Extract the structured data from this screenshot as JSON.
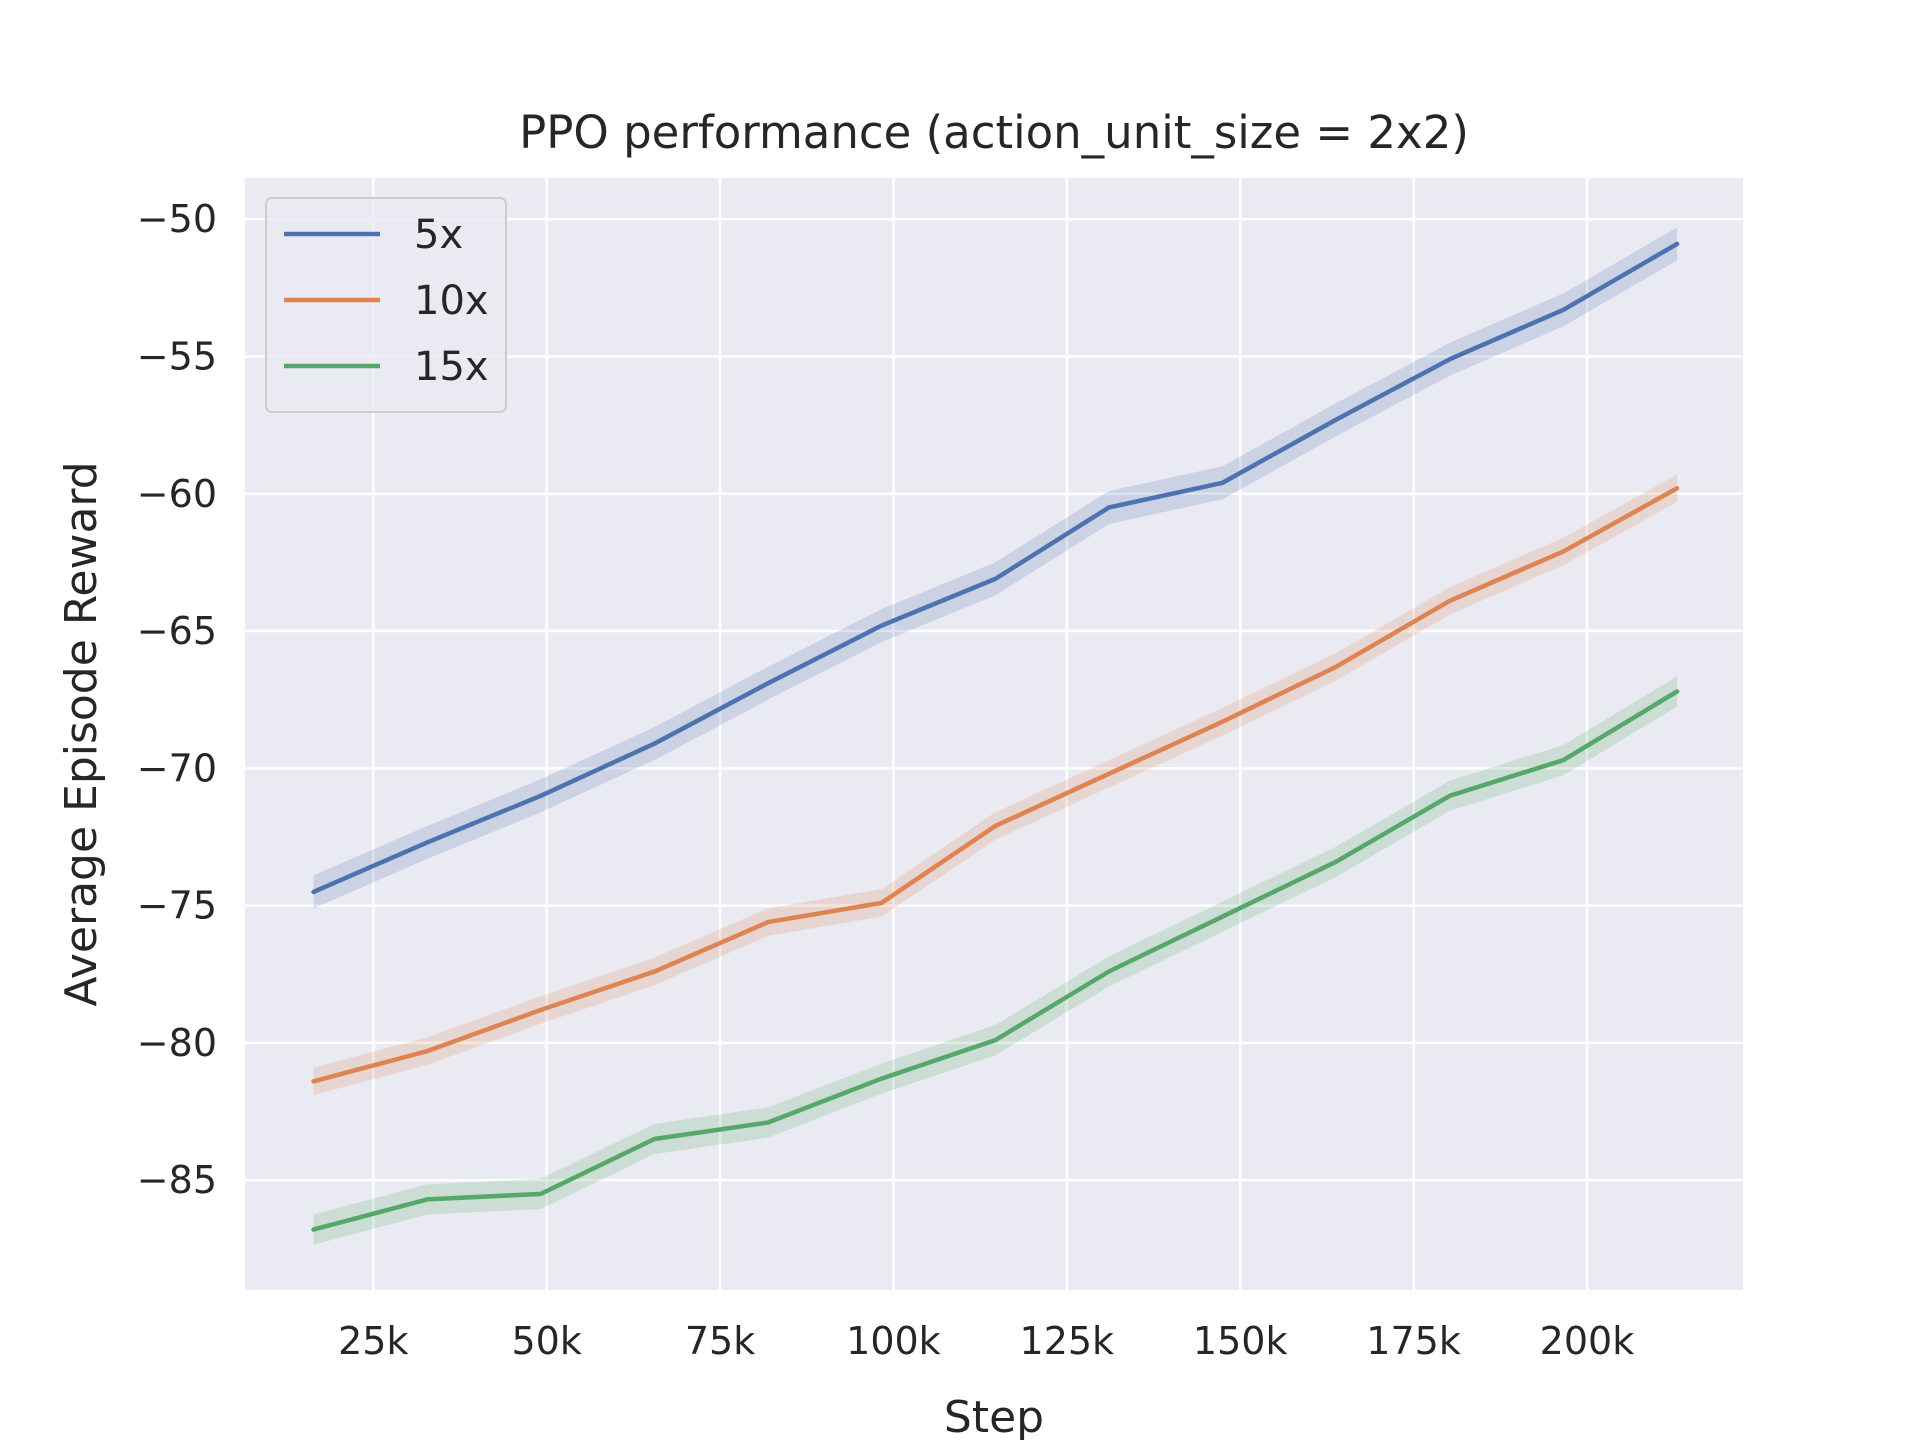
{
  "chart_data": {
    "type": "line",
    "title": "PPO performance (action_unit_size = 2x2)",
    "xlabel": "Step",
    "ylabel": "Average Episode Reward",
    "xlim": [
      6500,
      222500
    ],
    "ylim": [
      -89,
      -48.5
    ],
    "xticks": [
      25000,
      50000,
      75000,
      100000,
      125000,
      150000,
      175000,
      200000
    ],
    "xtick_labels": [
      "25k",
      "50k",
      "75k",
      "100k",
      "125k",
      "150k",
      "175k",
      "200k"
    ],
    "yticks": [
      -85,
      -80,
      -75,
      -70,
      -65,
      -60,
      -55,
      -50
    ],
    "ytick_labels": [
      "−85",
      "−80",
      "−75",
      "−70",
      "−65",
      "−60",
      "−55",
      "−50"
    ],
    "grid": true,
    "legend_position": "top-left",
    "x": [
      16384,
      32768,
      49152,
      65536,
      81920,
      98304,
      114688,
      131072,
      147456,
      163840,
      180224,
      196608,
      212992
    ],
    "series": [
      {
        "name": "5x",
        "color": "#4c72b0",
        "values": [
          -74.5,
          -72.7,
          -71.0,
          -69.1,
          -66.9,
          -64.8,
          -63.1,
          -60.5,
          -59.6,
          -57.3,
          -55.1,
          -53.3,
          -50.9
        ],
        "band": 0.6
      },
      {
        "name": "10x",
        "color": "#dd8452",
        "values": [
          -81.4,
          -80.3,
          -78.8,
          -77.4,
          -75.6,
          -74.9,
          -72.1,
          -70.2,
          -68.3,
          -66.3,
          -63.9,
          -62.1,
          -59.8
        ],
        "band": 0.5
      },
      {
        "name": "15x",
        "color": "#55a868",
        "values": [
          -86.8,
          -85.7,
          -85.5,
          -83.5,
          -82.9,
          -81.3,
          -79.9,
          -77.4,
          -75.4,
          -73.4,
          -71.0,
          -69.7,
          -67.2
        ],
        "band": 0.55
      }
    ]
  }
}
